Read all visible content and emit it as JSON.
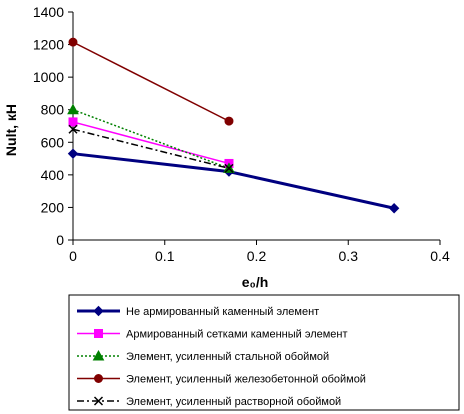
{
  "chart_data": {
    "type": "line",
    "title": "",
    "xlabel": "e₀/h",
    "ylabel": "Nult, кН",
    "xlim": [
      0,
      0.4
    ],
    "ylim": [
      0,
      1400
    ],
    "x_ticks": [
      "0",
      "0.1",
      "0.2",
      "0.3",
      "0.4"
    ],
    "y_ticks": [
      "0",
      "200",
      "400",
      "600",
      "800",
      "1000",
      "1200",
      "1400"
    ],
    "grid": false,
    "legend_position": "bottom",
    "series": [
      {
        "name": "Не армированный каменный элемент",
        "x": [
          0,
          0.17,
          0.35
        ],
        "y": [
          530,
          420,
          195
        ],
        "color": "#000080",
        "marker": "diamond",
        "dash": "solid"
      },
      {
        "name": "Армированный сетками каменный элемент",
        "x": [
          0,
          0.17
        ],
        "y": [
          725,
          470
        ],
        "color": "#ff00ff",
        "marker": "square",
        "dash": "solid"
      },
      {
        "name": "Элемент, усиленный стальной обоймой",
        "x": [
          0,
          0.17
        ],
        "y": [
          800,
          440
        ],
        "color": "#008000",
        "marker": "triangle",
        "dash": "dotted"
      },
      {
        "name": "Элемент, усиленный железобетонной обоймой",
        "x": [
          0,
          0.17
        ],
        "y": [
          1215,
          730
        ],
        "color": "#800000",
        "marker": "circle",
        "dash": "solid"
      },
      {
        "name": "Элемент, усиленный растворной обоймой",
        "x": [
          0,
          0.17
        ],
        "y": [
          680,
          440
        ],
        "color": "#000000",
        "marker": "x",
        "dash": "dashdot"
      }
    ]
  }
}
